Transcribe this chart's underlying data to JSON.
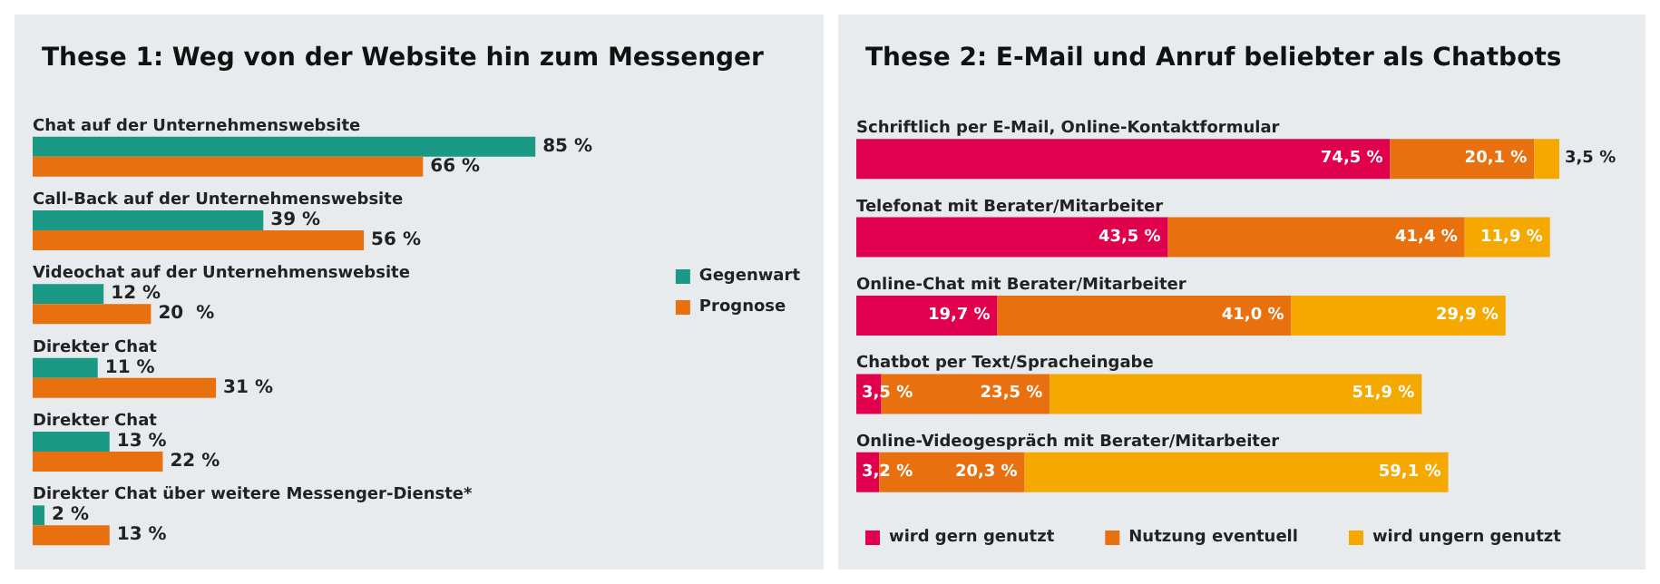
{
  "chart_data": [
    {
      "type": "bar",
      "title": "These 1: Weg von der Website hin zum Messenger",
      "orientation": "horizontal",
      "legend": "right",
      "categories": [
        "Chat auf der Unternehmenswebsite",
        "Call-Back auf der Unternehmenswebsite",
        "Videochat auf der Unternehmenswebsite",
        "Direkter Chat",
        "Direkter Chat",
        "Direkter Chat über weitere Messenger-Dienste*"
      ],
      "series": [
        {
          "name": "Gegenwart",
          "color": "#1a9985",
          "values": [
            85,
            39,
            12,
            11,
            13,
            2
          ],
          "value_labels": [
            "85 %",
            "39 %",
            "12 %",
            "11 %",
            "13 %",
            "2 %"
          ]
        },
        {
          "name": "Prognose",
          "color": "#e8700f",
          "values": [
            66,
            56,
            20,
            31,
            22,
            13
          ],
          "value_labels": [
            "66 %",
            "56 %",
            "20  %",
            "31 %",
            "22 %",
            "13 %"
          ]
        }
      ]
    },
    {
      "type": "bar",
      "title": "These 2: E-Mail und Anruf beliebter als Chatbots",
      "orientation": "horizontal",
      "stacked": true,
      "legend": "bottom",
      "categories": [
        "Schriftlich per E-Mail, Online-Kontaktformular",
        "Telefonat mit Berater/Mitarbeiter",
        "Online-Chat mit Berater/Mitarbeiter",
        "Chatbot per Text/Spracheingabe",
        "Online-Videogespräch mit Berater/Mitarbeiter"
      ],
      "series": [
        {
          "name": "wird gern genutzt",
          "color": "#e0004d",
          "values": [
            74.5,
            43.5,
            19.7,
            3.5,
            3.2
          ],
          "value_labels": [
            "74,5 %",
            "43,5 %",
            "19,7 %",
            "3,5 %",
            "3,2 %"
          ]
        },
        {
          "name": "Nutzung eventuell",
          "color": "#e8700f",
          "values": [
            20.1,
            41.4,
            41.0,
            23.5,
            20.3
          ],
          "value_labels": [
            "20,1 %",
            "41,4 %",
            "41,0 %",
            "23,5 %",
            "20,3 %"
          ]
        },
        {
          "name": "wird ungern genutzt",
          "color": "#f5a800",
          "values": [
            3.5,
            11.9,
            29.9,
            51.9,
            59.1
          ],
          "value_labels": [
            "3,5 %",
            "11,9 %",
            "29,9 %",
            "51,9 %",
            "59,1 %"
          ]
        }
      ]
    }
  ]
}
